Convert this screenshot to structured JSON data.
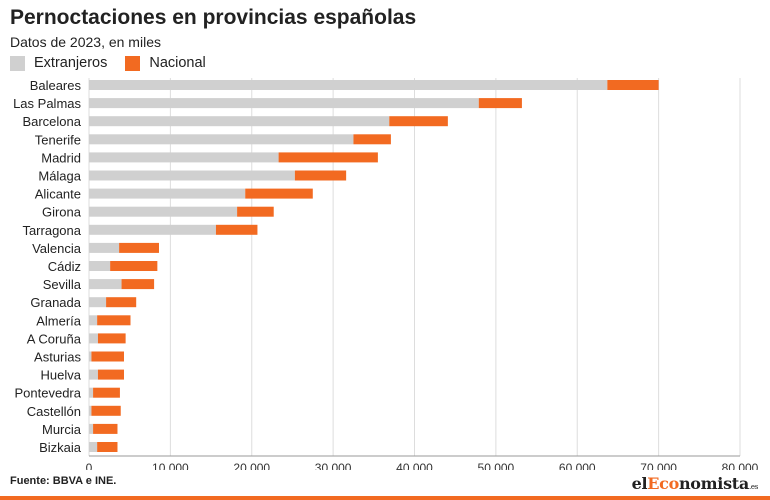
{
  "title": "Pernoctaciones en provincias españolas",
  "subtitle": "Datos de 2023, en miles",
  "source": "Fuente: BBVA e INE.",
  "brand": {
    "prefix": "el",
    "accent": "Eco",
    "rest": "nomista",
    "suffix": ".es"
  },
  "colors": {
    "extranjeros": "#d0d0d0",
    "nacional": "#f26a21",
    "grid": "#dddddd",
    "brand_accent": "#f26a21"
  },
  "chart_data": {
    "type": "bar",
    "orientation": "horizontal",
    "stacked": true,
    "title": "Pernoctaciones en provincias españolas",
    "subtitle": "Datos de 2023, en miles",
    "legend": "top-left",
    "grid": true,
    "xlim": [
      0,
      80000
    ],
    "xticks": [
      0,
      10000,
      20000,
      30000,
      40000,
      50000,
      60000,
      70000,
      80000
    ],
    "xtick_labels": [
      "0",
      "10.000",
      "20.000",
      "30.000",
      "40.000",
      "50.000",
      "60.000",
      "70.000",
      "80.000"
    ],
    "categories": [
      "Baleares",
      "Las Palmas",
      "Barcelona",
      "Tenerife",
      "Madrid",
      "Málaga",
      "Alicante",
      "Girona",
      "Tarragona",
      "Valencia",
      "Cádiz",
      "Sevilla",
      "Granada",
      "Almería",
      "A Coruña",
      "Asturias",
      "Huelva",
      "Pontevedra",
      "Castellón",
      "Murcia",
      "Bizkaia"
    ],
    "series": [
      {
        "name": "Extranjeros",
        "values": [
          63700,
          47900,
          36900,
          32500,
          23300,
          25300,
          19200,
          18200,
          15600,
          3700,
          2600,
          4000,
          2100,
          1000,
          1100,
          300,
          1100,
          500,
          300,
          500,
          1000
        ]
      },
      {
        "name": "Nacional",
        "values": [
          6300,
          5300,
          7200,
          4600,
          12200,
          6300,
          8300,
          4500,
          5100,
          4900,
          5800,
          4000,
          3700,
          4100,
          3400,
          4000,
          3200,
          3300,
          3600,
          3000,
          2500
        ]
      }
    ]
  }
}
